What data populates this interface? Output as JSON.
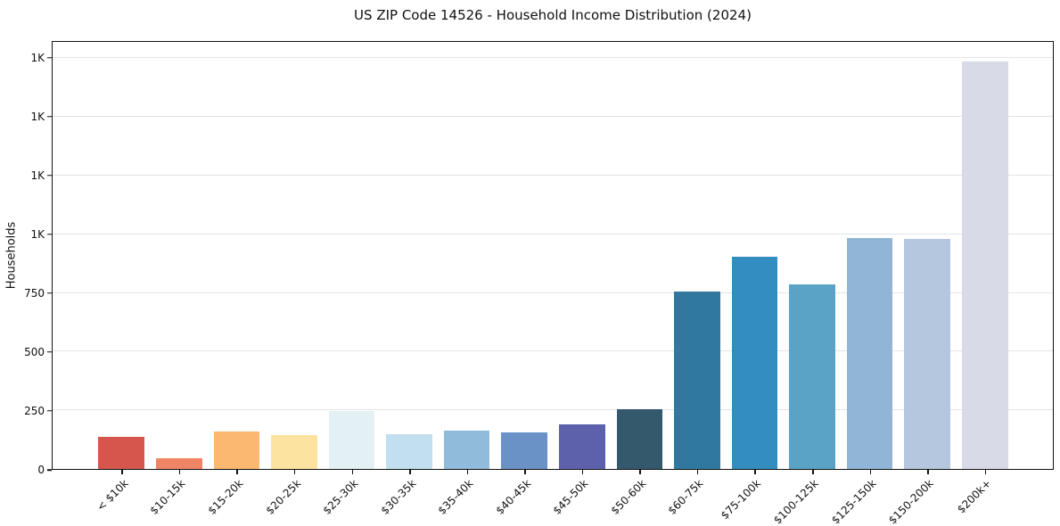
{
  "chart_data": {
    "type": "bar",
    "title": "US ZIP Code 14526 - Household Income Distribution (2024)",
    "xlabel": "",
    "ylabel": "Households",
    "categories": [
      "< $10k",
      "$10-15k",
      "$15-20k",
      "$20-25k",
      "$25-30k",
      "$30-35k",
      "$35-40k",
      "$40-45k",
      "$45-50k",
      "$50-60k",
      "$60-75k",
      "$75-100k",
      "$100-125k",
      "$125-150k",
      "$150-200k",
      "$200k+"
    ],
    "values": [
      135,
      45,
      160,
      143,
      248,
      148,
      165,
      157,
      190,
      255,
      758,
      905,
      785,
      985,
      982,
      1735
    ],
    "bar_colors": [
      "#d6564e",
      "#f08566",
      "#fbb871",
      "#fde3a0",
      "#e3f0f4",
      "#c1dfee",
      "#90bbda",
      "#6b92c6",
      "#5d60ab",
      "#34596c",
      "#31789f",
      "#338dc1",
      "#5ba3c6",
      "#90b5d7",
      "#b5c7de",
      "#d8dae7"
    ],
    "ylim": [
      0,
      1820
    ],
    "yticks": [
      {
        "value": 0,
        "label": "0"
      },
      {
        "value": 250,
        "label": "250"
      },
      {
        "value": 500,
        "label": "500"
      },
      {
        "value": 750,
        "label": "750"
      },
      {
        "value": 1000,
        "label": "1K"
      },
      {
        "value": 1250,
        "label": "1K"
      },
      {
        "value": 1500,
        "label": "1K"
      },
      {
        "value": 1750,
        "label": "1K"
      }
    ],
    "grid": "horizontal",
    "legend_position": "none",
    "colors": {
      "background": "#ffffff",
      "spine": "#111111",
      "grid": "#e4e4e6",
      "text": "#111111"
    }
  }
}
